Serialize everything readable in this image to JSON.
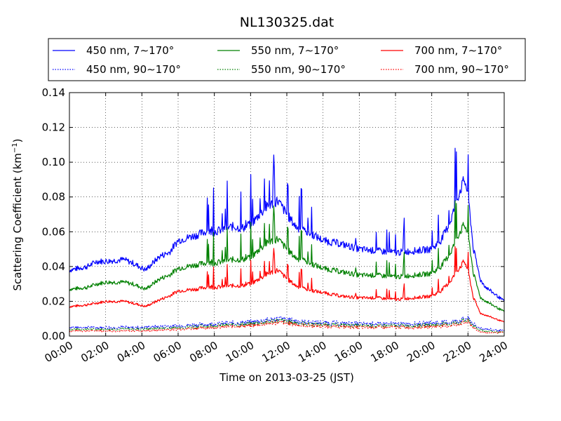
{
  "chart_data": {
    "type": "line",
    "title": "NL130325.dat",
    "xlabel": "Time on 2013-03-25 (JST)",
    "ylabel": "Scattering Coefficient (km",
    "ylabel_sup": "−1",
    "ylabel_end": ")",
    "xlim": [
      "00:00",
      "24:00"
    ],
    "ylim": [
      0.0,
      0.14
    ],
    "x_ticks": [
      "00:00",
      "02:00",
      "04:00",
      "06:00",
      "08:00",
      "10:00",
      "12:00",
      "14:00",
      "16:00",
      "18:00",
      "20:00",
      "22:00",
      "24:00"
    ],
    "y_ticks": [
      "0.00",
      "0.02",
      "0.04",
      "0.06",
      "0.08",
      "0.10",
      "0.12",
      "0.14"
    ],
    "grid": true,
    "legend_position": "top, above plot",
    "series": [
      {
        "name": "450 nm, 7∼170°",
        "color": "#0000ff",
        "style": "solid",
        "x_hours": [
          0,
          1,
          1.5,
          2,
          3,
          3.5,
          4.2,
          5,
          5.5,
          6,
          7,
          7.5,
          8,
          9,
          9.5,
          10,
          10.5,
          11,
          11.5,
          12,
          12.5,
          13,
          13.5,
          14,
          15,
          16,
          17,
          18,
          19,
          20,
          20.5,
          21,
          21.5,
          21.8,
          22,
          22.3,
          22.7,
          23,
          23.5,
          24
        ],
        "values": [
          0.038,
          0.04,
          0.043,
          0.043,
          0.044,
          0.042,
          0.038,
          0.046,
          0.048,
          0.055,
          0.058,
          0.06,
          0.06,
          0.063,
          0.062,
          0.064,
          0.07,
          0.075,
          0.078,
          0.07,
          0.063,
          0.06,
          0.058,
          0.055,
          0.053,
          0.05,
          0.049,
          0.048,
          0.049,
          0.05,
          0.055,
          0.065,
          0.082,
          0.09,
          0.082,
          0.05,
          0.032,
          0.028,
          0.024,
          0.02
        ]
      },
      {
        "name": "550 nm, 7∼170°",
        "color": "#008000",
        "style": "solid",
        "x_hours": [
          0,
          1,
          1.5,
          2,
          3,
          3.5,
          4.2,
          5,
          5.5,
          6,
          7,
          7.5,
          8,
          9,
          9.5,
          10,
          10.5,
          11,
          11.5,
          12,
          12.5,
          13,
          13.5,
          14,
          15,
          16,
          17,
          18,
          19,
          20,
          20.5,
          21,
          21.5,
          21.8,
          22,
          22.3,
          22.7,
          23,
          23.5,
          24
        ],
        "values": [
          0.027,
          0.028,
          0.03,
          0.031,
          0.031,
          0.03,
          0.027,
          0.033,
          0.035,
          0.039,
          0.041,
          0.042,
          0.042,
          0.044,
          0.044,
          0.045,
          0.05,
          0.054,
          0.056,
          0.05,
          0.045,
          0.043,
          0.041,
          0.039,
          0.037,
          0.035,
          0.035,
          0.034,
          0.035,
          0.036,
          0.04,
          0.047,
          0.059,
          0.064,
          0.059,
          0.036,
          0.022,
          0.02,
          0.017,
          0.014
        ]
      },
      {
        "name": "700 nm, 7∼170°",
        "color": "#ff0000",
        "style": "solid",
        "x_hours": [
          0,
          1,
          1.5,
          2,
          3,
          3.5,
          4.2,
          5,
          5.5,
          6,
          7,
          7.5,
          8,
          9,
          9.5,
          10,
          10.5,
          11,
          11.5,
          12,
          12.5,
          13,
          13.5,
          14,
          15,
          16,
          17,
          18,
          19,
          20,
          20.5,
          21,
          21.5,
          21.8,
          22,
          22.3,
          22.7,
          23,
          23.5,
          24
        ],
        "values": [
          0.017,
          0.018,
          0.019,
          0.02,
          0.02,
          0.019,
          0.017,
          0.021,
          0.023,
          0.026,
          0.027,
          0.028,
          0.028,
          0.029,
          0.029,
          0.03,
          0.033,
          0.036,
          0.038,
          0.033,
          0.029,
          0.027,
          0.026,
          0.025,
          0.023,
          0.022,
          0.022,
          0.021,
          0.022,
          0.023,
          0.026,
          0.031,
          0.039,
          0.043,
          0.038,
          0.022,
          0.013,
          0.012,
          0.01,
          0.008
        ]
      },
      {
        "name": "450 nm, 90∼170°",
        "color": "#0000ff",
        "style": "dotted",
        "x_hours": [
          0,
          2,
          4,
          6,
          8,
          10,
          11.5,
          13,
          16,
          19,
          21,
          22,
          22.5,
          23,
          24
        ],
        "values": [
          0.005,
          0.005,
          0.005,
          0.006,
          0.007,
          0.008,
          0.01,
          0.008,
          0.007,
          0.007,
          0.008,
          0.01,
          0.005,
          0.004,
          0.003
        ]
      },
      {
        "name": "550 nm, 90∼170°",
        "color": "#008000",
        "style": "dotted",
        "x_hours": [
          0,
          2,
          4,
          6,
          8,
          10,
          11.5,
          13,
          16,
          19,
          21,
          22,
          22.5,
          23,
          24
        ],
        "values": [
          0.004,
          0.004,
          0.004,
          0.005,
          0.006,
          0.007,
          0.009,
          0.007,
          0.006,
          0.006,
          0.007,
          0.009,
          0.004,
          0.003,
          0.002
        ]
      },
      {
        "name": "700 nm, 90∼170°",
        "color": "#ff0000",
        "style": "dotted",
        "x_hours": [
          0,
          2,
          4,
          6,
          8,
          10,
          11.5,
          13,
          16,
          19,
          21,
          22,
          22.5,
          23,
          24
        ],
        "values": [
          0.003,
          0.003,
          0.003,
          0.004,
          0.005,
          0.006,
          0.008,
          0.006,
          0.005,
          0.005,
          0.006,
          0.008,
          0.003,
          0.002,
          0.002
        ]
      }
    ]
  }
}
